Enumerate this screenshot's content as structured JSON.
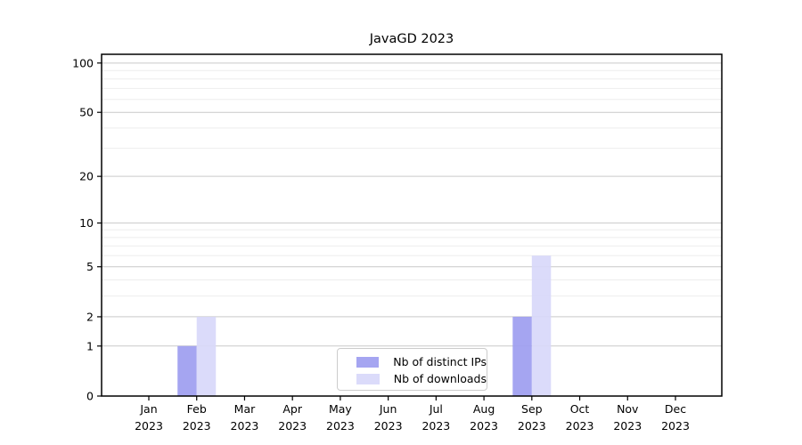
{
  "chart_data": {
    "type": "bar",
    "title": "JavaGD 2023",
    "categories": [
      "Jan",
      "Feb",
      "Mar",
      "Apr",
      "May",
      "Jun",
      "Jul",
      "Aug",
      "Sep",
      "Oct",
      "Nov",
      "Dec"
    ],
    "year_label": "2023",
    "series": [
      {
        "name": "Nb of distinct IPs",
        "color": "#9b9bf0",
        "values": [
          0,
          1,
          0,
          0,
          0,
          0,
          0,
          0,
          2,
          0,
          0,
          0
        ]
      },
      {
        "name": "Nb of downloads",
        "color": "#d7d7f9",
        "values": [
          0,
          2,
          0,
          0,
          0,
          0,
          0,
          0,
          6,
          0,
          0,
          0
        ]
      }
    ],
    "scale": "log1p",
    "ylim": [
      0,
      113
    ],
    "ytick_values": [
      0,
      1,
      2,
      5,
      10,
      20,
      50,
      100
    ],
    "major_grid_values": [
      1,
      2,
      5,
      10,
      20,
      50,
      100
    ],
    "minor_grid_values": [
      3,
      4,
      6,
      7,
      8,
      9,
      30,
      40,
      60,
      70,
      80,
      90
    ],
    "grid": "horizontal",
    "legend_position": "inside-bottom-center",
    "colors": {
      "major_grid": "#c9c9c9",
      "minor_grid": "#ededed",
      "axis": "#000000",
      "background": "#ffffff"
    }
  }
}
